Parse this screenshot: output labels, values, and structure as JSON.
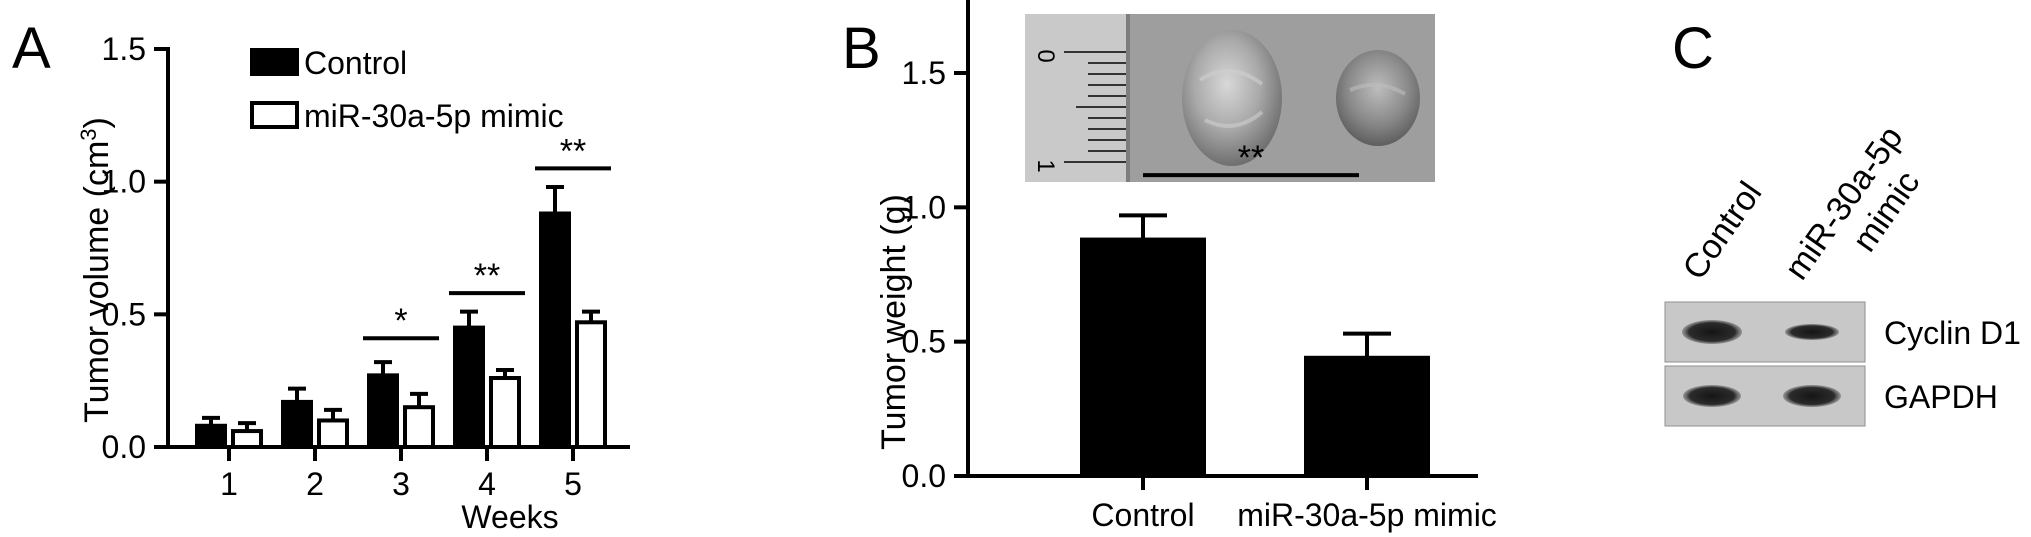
{
  "panels": {
    "a": {
      "letter": "A"
    },
    "b": {
      "letter": "B"
    },
    "c": {
      "letter": "C"
    }
  },
  "chart_data": [
    {
      "id": "a",
      "type": "bar",
      "xlabel": "Weeks",
      "ylabel": "Tumor volume (cm",
      "ylabel_sup": "3",
      "ylabel_close": ")",
      "ylim": [
        0,
        1.5
      ],
      "yticks": [
        "0.0",
        "0.5",
        "1.0",
        "1.5"
      ],
      "categories": [
        "1",
        "2",
        "3",
        "4",
        "5"
      ],
      "legend_position": "top-left",
      "series": [
        {
          "name": "Control",
          "fill": "#000000",
          "values": [
            0.08,
            0.17,
            0.27,
            0.45,
            0.88
          ],
          "errors": [
            0.03,
            0.05,
            0.05,
            0.06,
            0.1
          ]
        },
        {
          "name": "miR-30a-5p mimic",
          "fill": "#ffffff",
          "values": [
            0.06,
            0.1,
            0.15,
            0.26,
            0.47
          ],
          "errors": [
            0.03,
            0.04,
            0.05,
            0.03,
            0.04
          ]
        }
      ],
      "significance": [
        {
          "category_index": 2,
          "label": "*",
          "y": 0.41
        },
        {
          "category_index": 3,
          "label": "**",
          "y": 0.58
        },
        {
          "category_index": 4,
          "label": "**",
          "y": 1.05
        }
      ]
    },
    {
      "id": "b",
      "type": "bar",
      "xlabel": "",
      "ylabel": "Tumor weight (g)",
      "ylim": [
        0,
        1.8
      ],
      "yticks": [
        "0.0",
        "0.5",
        "1.0",
        "1.5"
      ],
      "categories": [
        "Control",
        "miR-30a-5p mimic"
      ],
      "values": [
        0.88,
        0.44
      ],
      "errors": [
        0.09,
        0.09
      ],
      "fill": "#000000",
      "significance": [
        {
          "from_index": 0,
          "to_index": 1,
          "label": "**",
          "y": 1.12
        }
      ],
      "photo": {
        "ruler_labels": [
          "0",
          "1"
        ]
      }
    }
  ],
  "blot": {
    "lane_labels": [
      "Control",
      "miR-30a-5p",
      "mimic"
    ],
    "rows": [
      {
        "label": "Cyclin D1"
      },
      {
        "label": "GAPDH"
      }
    ]
  }
}
